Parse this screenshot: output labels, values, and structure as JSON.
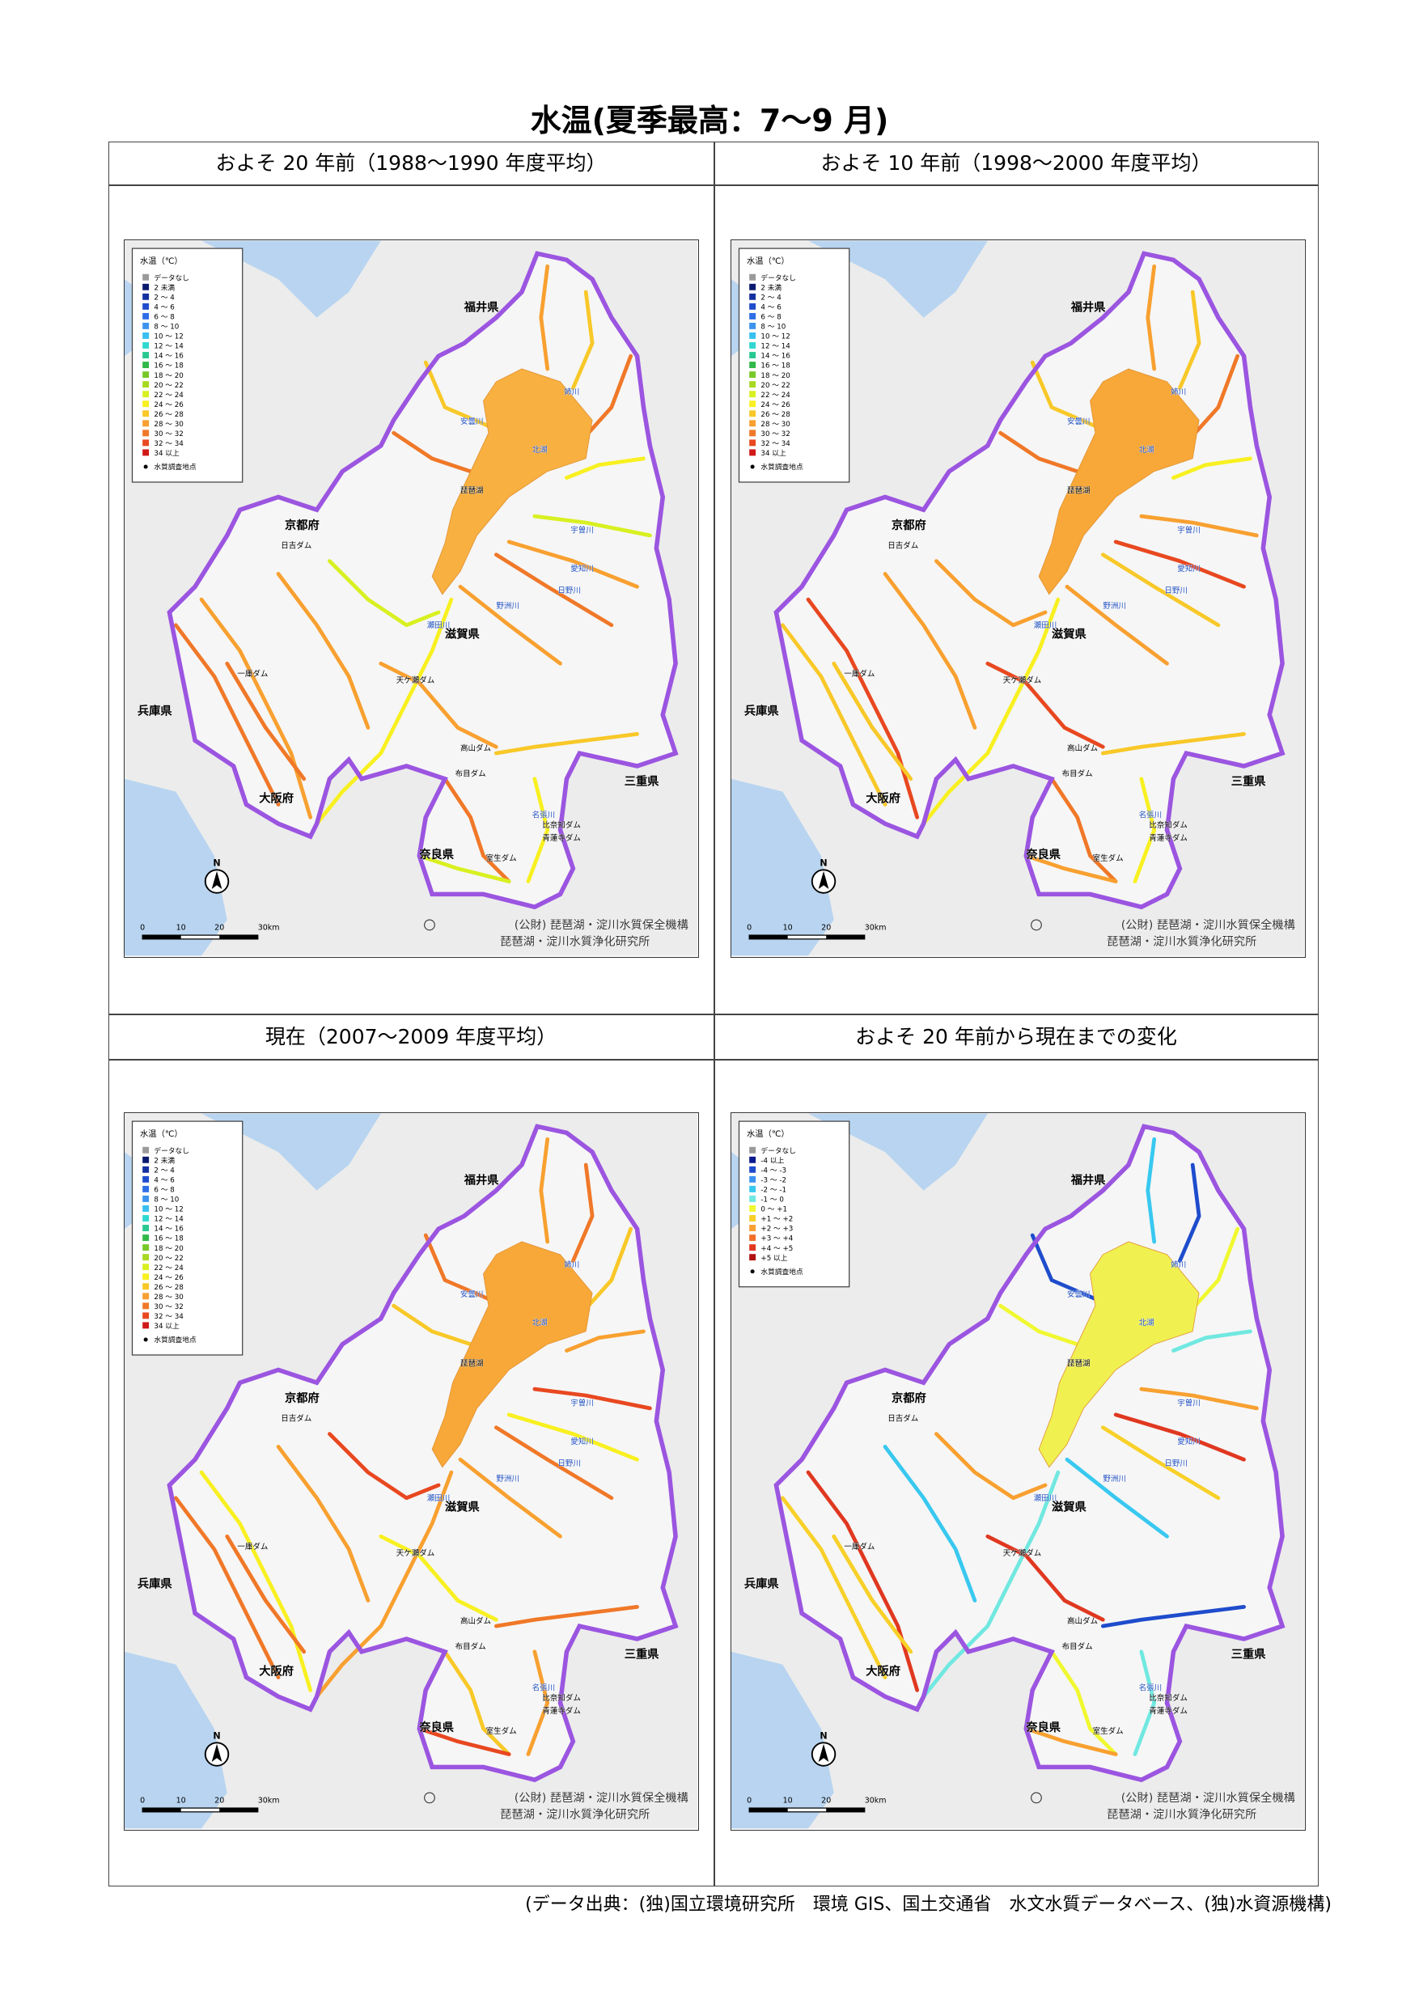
{
  "title": "水温(夏季最高：7～9 月)",
  "panels": [
    {
      "heading": "およそ 20 年前（1988～1990 年度平均）"
    },
    {
      "heading": "およそ 10 年前（1998～2000 年度平均）"
    },
    {
      "heading": "現在（2007～2009 年度平均）"
    },
    {
      "heading": "およそ 20 年前から現在までの変化"
    }
  ],
  "legends": {
    "temperature": {
      "title": "水温（℃）",
      "station": "水質調査地点",
      "items": [
        {
          "label": "データなし",
          "color": "#9a9a9a"
        },
        {
          "label": "2 未満",
          "color": "#0a1a6e"
        },
        {
          "label": "2 ～ 4",
          "color": "#1430a0"
        },
        {
          "label": "4 ～ 6",
          "color": "#1e4ccc"
        },
        {
          "label": "6 ～ 8",
          "color": "#2e6ee6"
        },
        {
          "label": "8 ～ 10",
          "color": "#3c94f0"
        },
        {
          "label": "10 ～ 12",
          "color": "#38c0f0"
        },
        {
          "label": "12 ～ 14",
          "color": "#30d8d0"
        },
        {
          "label": "14 ～ 16",
          "color": "#28c890"
        },
        {
          "label": "16 ～ 18",
          "color": "#30b848"
        },
        {
          "label": "18 ～ 20",
          "color": "#78c828"
        },
        {
          "label": "20 ～ 22",
          "color": "#a8d820"
        },
        {
          "label": "22 ～ 24",
          "color": "#d8f020"
        },
        {
          "label": "24 ～ 26",
          "color": "#f8f020"
        },
        {
          "label": "26 ～ 28",
          "color": "#f8c828"
        },
        {
          "label": "28 ～ 30",
          "color": "#f8a030"
        },
        {
          "label": "30 ～ 32",
          "color": "#f07828"
        },
        {
          "label": "32 ～ 34",
          "color": "#e84820"
        },
        {
          "label": "34 以上",
          "color": "#d01818"
        }
      ]
    },
    "change": {
      "title": "水温（℃）",
      "station": "水質調査地点",
      "items": [
        {
          "label": "データなし",
          "color": "#9a9a9a"
        },
        {
          "label": "-4 以上",
          "color": "#0a1a8e"
        },
        {
          "label": "-4 ～ -3",
          "color": "#1e4ccc"
        },
        {
          "label": "-3 ～ -2",
          "color": "#3c94f0"
        },
        {
          "label": "-2 ～ -1",
          "color": "#38c8f0"
        },
        {
          "label": "-1 ～ 0",
          "color": "#70e8e0"
        },
        {
          "label": "0 ～ +1",
          "color": "#f0f830"
        },
        {
          "label": "+1 ～ +2",
          "color": "#f8d028"
        },
        {
          "label": "+2 ～ +3",
          "color": "#f8a030"
        },
        {
          "label": "+3 ～ +4",
          "color": "#f07028"
        },
        {
          "label": "+4 ～ +5",
          "color": "#e03820"
        },
        {
          "label": "+5 以上",
          "color": "#b01010"
        }
      ]
    }
  },
  "map_labels": [
    "福井県",
    "京都府",
    "滋賀県",
    "兵庫県",
    "大阪府",
    "三重県",
    "奈良県",
    "琵琶湖",
    "北湖",
    "安曇川",
    "姉川",
    "宇曽川",
    "愛知川",
    "日野川",
    "野洲川",
    "瀬田川",
    "名張川",
    "日吉ダム",
    "天ケ瀬ダム",
    "高山ダム",
    "布目ダム",
    "比奈知ダム",
    "青蓮寺ダム",
    "室生ダム",
    "一庫ダム"
  ],
  "north": "N",
  "scale": [
    "0",
    "10",
    "20",
    "30km"
  ],
  "credit": [
    "(公財) 琵琶湖・淀川水質保全機構",
    "琵琶湖・淀川水質浄化研究所"
  ],
  "footer": "(データ出典：(独)国立環境研究所　環境 GIS、国土交通省　水文水質データベース、(独)水資源機構)"
}
